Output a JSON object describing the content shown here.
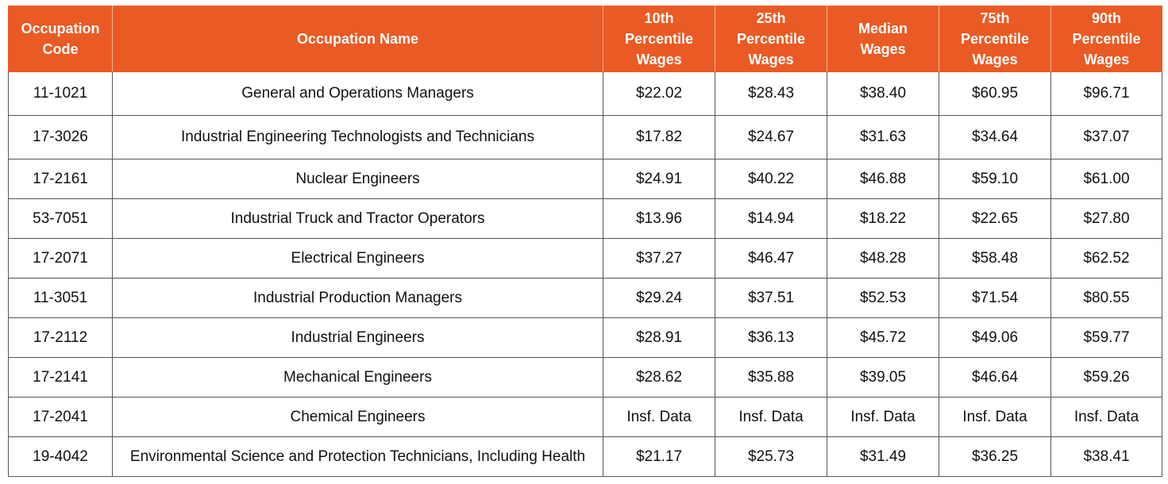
{
  "table": {
    "header": [
      [
        "Occupation",
        "Code"
      ],
      [
        "Occupation Name"
      ],
      [
        "10th",
        "Percentile",
        "Wages"
      ],
      [
        "25th",
        "Percentile",
        "Wages"
      ],
      [
        "Median",
        "Wages"
      ],
      [
        "75th",
        "Percentile",
        "Wages"
      ],
      [
        "90th",
        "Percentile",
        "Wages"
      ]
    ],
    "rows": [
      [
        "11-1021",
        "General and Operations Managers",
        "$22.02",
        "$28.43",
        "$38.40",
        "$60.95",
        "$96.71"
      ],
      [
        "17-3026",
        "Industrial Engineering Technologists and Technicians",
        "$17.82",
        "$24.67",
        "$31.63",
        "$34.64",
        "$37.07"
      ],
      [
        "17-2161",
        "Nuclear Engineers",
        "$24.91",
        "$40.22",
        "$46.88",
        "$59.10",
        "$61.00"
      ],
      [
        "53-7051",
        "Industrial Truck and Tractor Operators",
        "$13.96",
        "$14.94",
        "$18.22",
        "$22.65",
        "$27.80"
      ],
      [
        "17-2071",
        "Electrical Engineers",
        "$37.27",
        "$46.47",
        "$48.28",
        "$58.48",
        "$62.52"
      ],
      [
        "11-3051",
        "Industrial Production Managers",
        "$29.24",
        "$37.51",
        "$52.53",
        "$71.54",
        "$80.55"
      ],
      [
        "17-2112",
        "Industrial Engineers",
        "$28.91",
        "$36.13",
        "$45.72",
        "$49.06",
        "$59.77"
      ],
      [
        "17-2141",
        "Mechanical Engineers",
        "$28.62",
        "$35.88",
        "$39.05",
        "$46.64",
        "$59.26"
      ],
      [
        "17-2041",
        "Chemical Engineers",
        "Insf. Data",
        "Insf. Data",
        "Insf. Data",
        "Insf. Data",
        "Insf. Data"
      ],
      [
        "19-4042",
        "Environmental Science and Protection Technicians, Including Health",
        "$21.17",
        "$25.73",
        "$31.49",
        "$36.25",
        "$38.41"
      ]
    ]
  }
}
